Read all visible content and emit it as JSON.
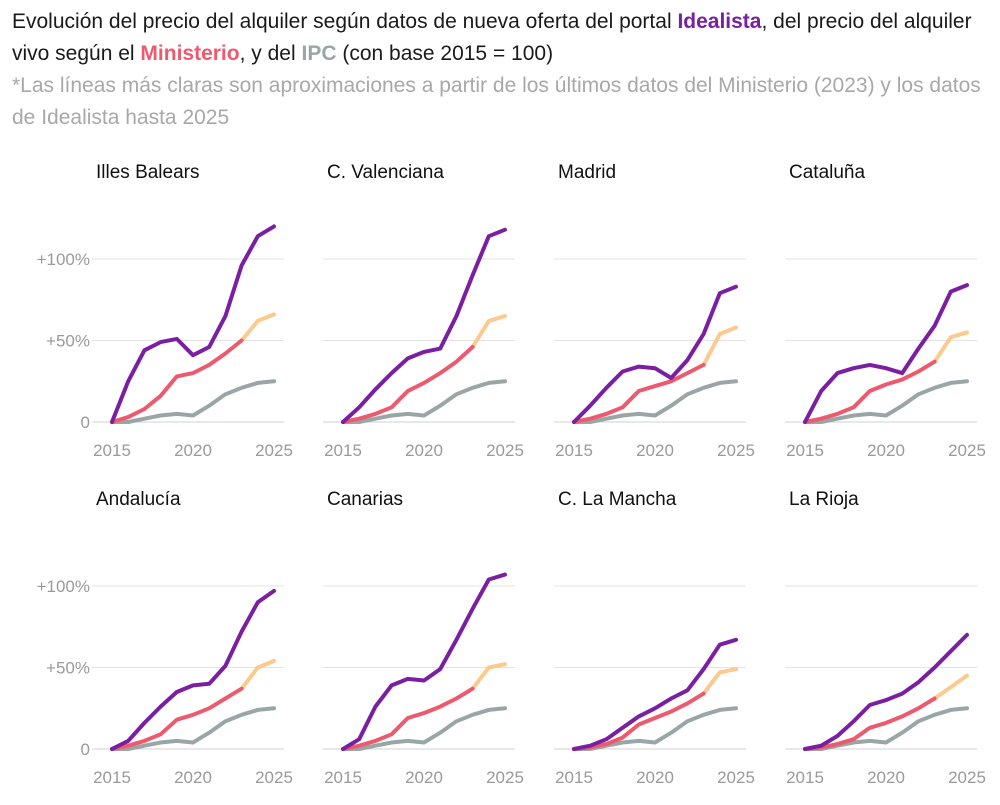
{
  "header": {
    "title_part1": "Evolución del precio del alquiler según datos de nueva oferta del portal ",
    "kw_idealista": "Idealista",
    "title_part2": ", del precio del alquiler vivo según el ",
    "kw_ministerio": "Ministerio",
    "title_part3": ", y del ",
    "kw_ipc": "IPC",
    "title_part4": " (con base 2015 = 100)",
    "subtitle": "*Las líneas más claras son aproximaciones a partir de los últimos datos del Ministerio (2023) y los datos de Idealista hasta 2025"
  },
  "colors": {
    "idealista": "#7b1fa2",
    "ministerio": "#ec5a6e",
    "ministerio_approx": "#fcc98f",
    "ipc": "#9aa6a6"
  },
  "chart_data": {
    "type": "line",
    "x_ticks": [
      "2015",
      "2020",
      "2025"
    ],
    "y_ticks": [
      {
        "value": 0,
        "label": "0"
      },
      {
        "value": 50,
        "label": "+50%"
      },
      {
        "value": 100,
        "label": "+100%"
      }
    ],
    "xlim": [
      2015,
      2025
    ],
    "ylim": [
      0,
      125
    ],
    "ipc": {
      "x": [
        2015,
        2016,
        2017,
        2018,
        2019,
        2020,
        2021,
        2022,
        2023,
        2024,
        2025
      ],
      "y": [
        0,
        0,
        2,
        4,
        5,
        4,
        10,
        17,
        21,
        24,
        25
      ]
    },
    "panels": [
      {
        "name": "Illes Balears",
        "idealista": {
          "x": [
            2015,
            2016,
            2017,
            2018,
            2019,
            2020,
            2021,
            2022,
            2023,
            2024,
            2025
          ],
          "y": [
            0,
            25,
            44,
            49,
            51,
            41,
            46,
            65,
            96,
            114,
            120
          ]
        },
        "ministerio": {
          "x": [
            2015,
            2016,
            2017,
            2018,
            2019,
            2020,
            2021,
            2022,
            2023
          ],
          "y": [
            0,
            3,
            8,
            16,
            28,
            30,
            35,
            42,
            50
          ]
        },
        "ministerio_approx": {
          "x": [
            2023,
            2024,
            2025
          ],
          "y": [
            50,
            62,
            66
          ]
        }
      },
      {
        "name": "C. Valenciana",
        "idealista": {
          "x": [
            2015,
            2016,
            2017,
            2018,
            2019,
            2020,
            2021,
            2022,
            2023,
            2024,
            2025
          ],
          "y": [
            0,
            9,
            20,
            30,
            39,
            43,
            45,
            65,
            90,
            114,
            118
          ]
        },
        "ministerio": {
          "x": [
            2015,
            2016,
            2017,
            2018,
            2019,
            2020,
            2021,
            2022,
            2023
          ],
          "y": [
            0,
            2,
            5,
            9,
            19,
            24,
            30,
            37,
            46
          ]
        },
        "ministerio_approx": {
          "x": [
            2023,
            2024,
            2025
          ],
          "y": [
            46,
            62,
            65
          ]
        }
      },
      {
        "name": "Madrid",
        "idealista": {
          "x": [
            2015,
            2016,
            2017,
            2018,
            2019,
            2020,
            2021,
            2022,
            2023,
            2024,
            2025
          ],
          "y": [
            0,
            10,
            21,
            31,
            34,
            33,
            27,
            38,
            54,
            79,
            83
          ]
        },
        "ministerio": {
          "x": [
            2015,
            2016,
            2017,
            2018,
            2019,
            2020,
            2021,
            2022,
            2023
          ],
          "y": [
            0,
            2,
            5,
            9,
            19,
            22,
            25,
            30,
            35
          ]
        },
        "ministerio_approx": {
          "x": [
            2023,
            2024,
            2025
          ],
          "y": [
            35,
            54,
            58
          ]
        }
      },
      {
        "name": "Cataluña",
        "idealista": {
          "x": [
            2015,
            2016,
            2017,
            2018,
            2019,
            2020,
            2021,
            2022,
            2023,
            2024,
            2025
          ],
          "y": [
            0,
            19,
            30,
            33,
            35,
            33,
            30,
            45,
            59,
            80,
            84
          ]
        },
        "ministerio": {
          "x": [
            2015,
            2016,
            2017,
            2018,
            2019,
            2020,
            2021,
            2022,
            2023
          ],
          "y": [
            0,
            2,
            5,
            9,
            19,
            23,
            26,
            31,
            37
          ]
        },
        "ministerio_approx": {
          "x": [
            2023,
            2024,
            2025
          ],
          "y": [
            37,
            52,
            55
          ]
        }
      },
      {
        "name": "Andalucía",
        "idealista": {
          "x": [
            2015,
            2016,
            2017,
            2018,
            2019,
            2020,
            2021,
            2022,
            2023,
            2024,
            2025
          ],
          "y": [
            0,
            5,
            16,
            26,
            35,
            39,
            40,
            51,
            72,
            90,
            97
          ]
        },
        "ministerio": {
          "x": [
            2015,
            2016,
            2017,
            2018,
            2019,
            2020,
            2021,
            2022,
            2023
          ],
          "y": [
            0,
            2,
            5,
            9,
            18,
            21,
            25,
            31,
            37
          ]
        },
        "ministerio_approx": {
          "x": [
            2023,
            2024,
            2025
          ],
          "y": [
            37,
            50,
            54
          ]
        }
      },
      {
        "name": "Canarias",
        "idealista": {
          "x": [
            2015,
            2016,
            2017,
            2018,
            2019,
            2020,
            2021,
            2022,
            2023,
            2024,
            2025
          ],
          "y": [
            0,
            6,
            26,
            39,
            43,
            42,
            49,
            67,
            86,
            104,
            107
          ]
        },
        "ministerio": {
          "x": [
            2015,
            2016,
            2017,
            2018,
            2019,
            2020,
            2021,
            2022,
            2023
          ],
          "y": [
            0,
            2,
            5,
            9,
            19,
            22,
            26,
            31,
            37
          ]
        },
        "ministerio_approx": {
          "x": [
            2023,
            2024,
            2025
          ],
          "y": [
            37,
            50,
            52
          ]
        }
      },
      {
        "name": "C. La Mancha",
        "idealista": {
          "x": [
            2015,
            2016,
            2017,
            2018,
            2019,
            2020,
            2021,
            2022,
            2023,
            2024,
            2025
          ],
          "y": [
            0,
            2,
            6,
            13,
            20,
            25,
            31,
            36,
            49,
            64,
            67
          ]
        },
        "ministerio": {
          "x": [
            2015,
            2016,
            2017,
            2018,
            2019,
            2020,
            2021,
            2022,
            2023
          ],
          "y": [
            0,
            1,
            3,
            7,
            15,
            19,
            23,
            28,
            34
          ]
        },
        "ministerio_approx": {
          "x": [
            2023,
            2024,
            2025
          ],
          "y": [
            34,
            47,
            49
          ]
        }
      },
      {
        "name": "La Rioja",
        "idealista": {
          "x": [
            2015,
            2016,
            2017,
            2018,
            2019,
            2020,
            2021,
            2022,
            2023,
            2024,
            2025
          ],
          "y": [
            0,
            2,
            8,
            17,
            27,
            30,
            34,
            41,
            50,
            60,
            70
          ]
        },
        "ministerio": {
          "x": [
            2015,
            2016,
            2017,
            2018,
            2019,
            2020,
            2021,
            2022,
            2023
          ],
          "y": [
            0,
            1,
            3,
            6,
            13,
            16,
            20,
            25,
            31
          ]
        },
        "ministerio_approx": {
          "x": [
            2023,
            2024,
            2025
          ],
          "y": [
            31,
            38,
            45
          ]
        }
      }
    ]
  }
}
